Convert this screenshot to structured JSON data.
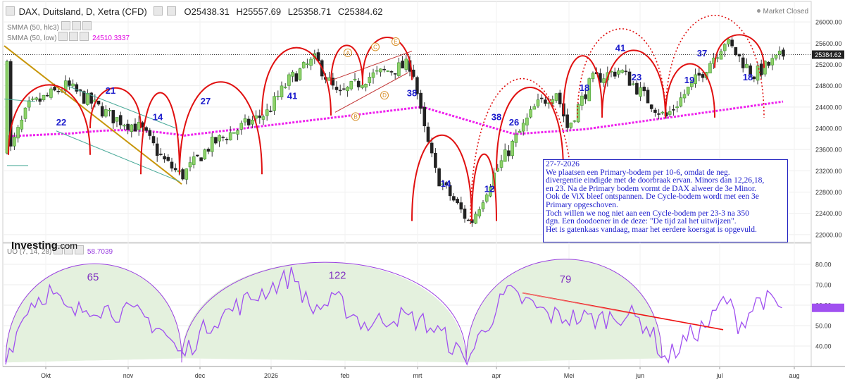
{
  "header": {
    "instrument": "DAX, Duitsland, D, Xetra (CFD)",
    "open": "O25438.31",
    "high": "H25557.69",
    "low": "L25358.71",
    "close": "C25384.62",
    "market_status": "Market Closed"
  },
  "indicators": {
    "smma_hlc3": "SMMA (50, hlc3)",
    "smma_low": "SMMA (50, low)",
    "smma_low_value": "24510.3337",
    "uo": "UO (7, 14, 28)",
    "uo_value": "58.7039"
  },
  "logo": {
    "brand": "Investing",
    "suffix": ".com"
  },
  "note_lines": [
    "27-7-2026",
    "We plaatsen een Primary-bodem per 10-6, omdat de neg.",
    "divergentie eindigde met de doorbraak ervan. Minors dan 12,26,18,",
    "en 23. Na de Primary bodem vormt de DAX alweer de 3e Minor.",
    "Ook de ViX bleef ontspannen. De Cycle-bodem wordt met een 3e",
    "Primary opgeschoven.",
    "Toch willen we nog niet aan een Cycle-bodem per 23-3 na 350",
    "dgn. Een doodoener in de deze: \"De tijd zal het uitwijzen\".",
    "Het is gatenkaas vandaag, maar het eerdere koersgat is opgevuld."
  ],
  "chart_data": [
    {
      "type": "candlestick",
      "title": "DAX, Duitsland, D, Xetra (CFD)",
      "price_label": "25384.62",
      "ylim": [
        21800,
        26200
      ],
      "y_ticks": [
        22000,
        22400,
        22800,
        23200,
        23600,
        24000,
        24400,
        24800,
        25200,
        25600,
        26000
      ],
      "x_ticks": [
        "Okt",
        "nov",
        "dec",
        "2026",
        "feb",
        "mrt",
        "apr",
        "Mei",
        "jun",
        "jul",
        "aug"
      ],
      "close_path": [
        [
          "Okt",
          23500
        ],
        [
          "Okt",
          24400
        ],
        [
          "Okt",
          24800
        ],
        [
          "nov",
          24200
        ],
        [
          "nov",
          24000
        ],
        [
          "nov",
          23400
        ],
        [
          "dec",
          23100
        ],
        [
          "dec",
          23700
        ],
        [
          "dec",
          24000
        ],
        [
          "2026",
          24300
        ],
        [
          "2026",
          24900
        ],
        [
          "2026",
          25300
        ],
        [
          "feb",
          24600
        ],
        [
          "feb",
          24950
        ],
        [
          "feb",
          25100
        ],
        [
          "mrt",
          25200
        ],
        [
          "mrt",
          24100
        ],
        [
          "mrt",
          23100
        ],
        [
          "apr",
          22200
        ],
        [
          "apr",
          23100
        ],
        [
          "apr",
          24400
        ],
        [
          "Mei",
          24700
        ],
        [
          "Mei",
          24000
        ],
        [
          "Mei",
          24900
        ],
        [
          "jun",
          25100
        ],
        [
          "jun",
          24600
        ],
        [
          "jun",
          24200
        ],
        [
          "jul",
          25100
        ],
        [
          "jul",
          25650
        ],
        [
          "jul",
          25000
        ],
        [
          "aug",
          25384.62
        ]
      ],
      "series": [
        {
          "name": "SMMA (50, low)",
          "last": 24510.3337
        },
        {
          "name": "SMMA (50, hlc3)"
        }
      ],
      "cycle_labels": [
        {
          "text": "22",
          "x": "Okt",
          "y": 24050
        },
        {
          "text": "21",
          "x": "nov",
          "y": 24650
        },
        {
          "text": "14",
          "x": "nov",
          "y": 24150
        },
        {
          "text": "27",
          "x": "dec",
          "y": 24450
        },
        {
          "text": "41",
          "x": "2026",
          "y": 24550
        },
        {
          "text": "38",
          "x": "mrt",
          "y": 24600
        },
        {
          "text": "14",
          "x": "mrt",
          "y": 22900
        },
        {
          "text": "12",
          "x": "apr",
          "y": 22800
        },
        {
          "text": "38",
          "x": "apr",
          "y": 24150
        },
        {
          "text": "26",
          "x": "apr",
          "y": 24050
        },
        {
          "text": "18",
          "x": "Mei",
          "y": 24700
        },
        {
          "text": "41",
          "x": "jun",
          "y": 25450
        },
        {
          "text": "23",
          "x": "jun",
          "y": 24900
        },
        {
          "text": "19",
          "x": "jun",
          "y": 24850
        },
        {
          "text": "37",
          "x": "jul",
          "y": 25350
        },
        {
          "text": "18",
          "x": "jul",
          "y": 24900
        }
      ],
      "wave_labels": [
        "A",
        "B",
        "C",
        "D",
        "E"
      ]
    },
    {
      "type": "line",
      "title": "UO (7, 14, 28)",
      "last": 58.7039,
      "ylim": [
        30,
        80
      ],
      "y_ticks": [
        40,
        50,
        60,
        70,
        80
      ],
      "arc_labels": [
        "65",
        "122",
        "79"
      ]
    }
  ]
}
